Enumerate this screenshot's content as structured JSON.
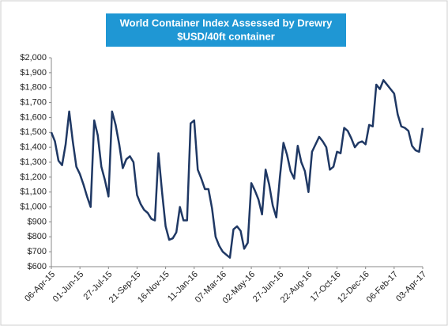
{
  "chart_data": {
    "type": "line",
    "title": "World Container Index Assessed by Drewry",
    "subtitle": "$USD/40ft container",
    "categories": [
      "06-Apr-15",
      null,
      null,
      null,
      null,
      null,
      null,
      null,
      "01-Jun-15",
      null,
      null,
      null,
      null,
      null,
      null,
      null,
      "27-Jul-15",
      null,
      null,
      null,
      null,
      null,
      null,
      null,
      "21-Sep-15",
      null,
      null,
      null,
      null,
      null,
      null,
      null,
      "16-Nov-15",
      null,
      null,
      null,
      null,
      null,
      null,
      null,
      "11-Jan-16",
      null,
      null,
      null,
      null,
      null,
      null,
      null,
      "07-Mar-16",
      null,
      null,
      null,
      null,
      null,
      null,
      null,
      "02-May-16",
      null,
      null,
      null,
      null,
      null,
      null,
      null,
      "27-Jun-16",
      null,
      null,
      null,
      null,
      null,
      null,
      null,
      "22-Aug-16",
      null,
      null,
      null,
      null,
      null,
      null,
      null,
      "17-Oct-16",
      null,
      null,
      null,
      null,
      null,
      null,
      null,
      "12-Dec-16",
      null,
      null,
      null,
      null,
      null,
      null,
      null,
      "06-Feb-17",
      null,
      null,
      null,
      null,
      null,
      null,
      null,
      "03-Apr-17"
    ],
    "series": [
      {
        "name": "World Container Index",
        "color": "#1f3864",
        "values": [
          1500,
          1440,
          1310,
          1280,
          1420,
          1640,
          1440,
          1270,
          1220,
          1150,
          1070,
          1000,
          1580,
          1480,
          1270,
          1180,
          1070,
          1640,
          1550,
          1420,
          1260,
          1320,
          1340,
          1300,
          1080,
          1020,
          980,
          960,
          920,
          910,
          1360,
          1100,
          870,
          780,
          790,
          830,
          1000,
          910,
          910,
          1560,
          1580,
          1250,
          1190,
          1120,
          1120,
          990,
          800,
          740,
          700,
          680,
          660,
          850,
          870,
          840,
          720,
          760,
          1160,
          1110,
          1050,
          950,
          1250,
          1150,
          1010,
          930,
          1200,
          1430,
          1350,
          1240,
          1190,
          1410,
          1300,
          1240,
          1100,
          1370,
          1420,
          1470,
          1440,
          1400,
          1250,
          1270,
          1370,
          1360,
          1530,
          1510,
          1460,
          1400,
          1430,
          1440,
          1420,
          1550,
          1540,
          1820,
          1790,
          1850,
          1820,
          1790,
          1760,
          1620,
          1540,
          1530,
          1510,
          1410,
          1380,
          1370,
          1530
        ]
      }
    ],
    "ylim": [
      600,
      2000
    ],
    "yticks": [
      {
        "value": 600,
        "label": "$600"
      },
      {
        "value": 700,
        "label": "$700"
      },
      {
        "value": 800,
        "label": "$800"
      },
      {
        "value": 900,
        "label": "$900"
      },
      {
        "value": 1000,
        "label": "$1,000"
      },
      {
        "value": 1100,
        "label": "$1,100"
      },
      {
        "value": 1200,
        "label": "$1,200"
      },
      {
        "value": 1300,
        "label": "$1,300"
      },
      {
        "value": 1400,
        "label": "$1,400"
      },
      {
        "value": 1500,
        "label": "$1,500"
      },
      {
        "value": 1600,
        "label": "$1,600"
      },
      {
        "value": 1700,
        "label": "$1,700"
      },
      {
        "value": 1800,
        "label": "$1,800"
      },
      {
        "value": 1900,
        "label": "$1,900"
      },
      {
        "value": 2000,
        "label": "$2,000"
      }
    ],
    "grid": false
  }
}
